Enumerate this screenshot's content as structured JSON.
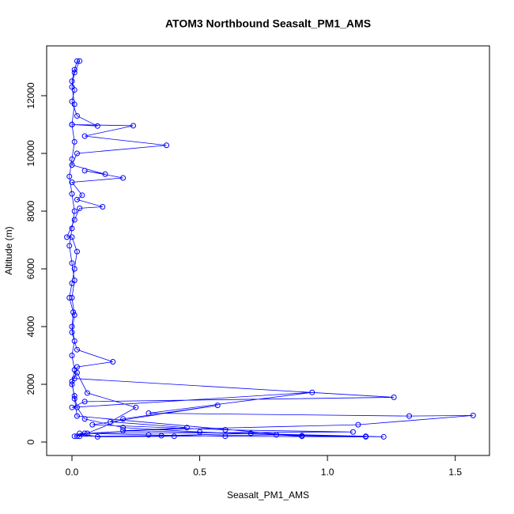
{
  "chart_data": {
    "type": "scatter",
    "lines": true,
    "title": "ATOM3 Northbound Seasalt_PM1_AMS",
    "x_label": "Seasalt_PM1_AMS",
    "y_label": "Altitude (m)",
    "xlim": [
      -0.099,
      1.634
    ],
    "ylim": [
      -466,
      13726
    ],
    "xticks": [
      {
        "value": 0,
        "label": "0.0"
      },
      {
        "value": 0.5,
        "label": "0.5"
      },
      {
        "value": 1,
        "label": "1.0"
      },
      {
        "value": 1.5,
        "label": "1.5"
      }
    ],
    "yticks": [
      0,
      2000,
      4000,
      6000,
      8000,
      10000,
      12000
    ],
    "series": [
      {
        "color": "#0000ff",
        "x": [
          0.01,
          0.05,
          0.3,
          0.6,
          1.15,
          0.9,
          0.5,
          0.2,
          0.05,
          0.02,
          0.01,
          0.0,
          0.01,
          0.0,
          0.01,
          0.0,
          0.005,
          -0.01,
          0.0,
          0.01,
          0.02,
          0.0,
          -0.02,
          0.01,
          0.03,
          0.12,
          0.02,
          0.04,
          0.0,
          0.2,
          0.05,
          0.13,
          0.0,
          0.02,
          0.37,
          0.05,
          0.24,
          0.0,
          0.1,
          0.02,
          0.0,
          0.01,
          0.0,
          0.01,
          0.02,
          0.03,
          0.01,
          0.0,
          0.01,
          0.0,
          0.01,
          0.0,
          -0.01,
          0.0,
          0.01,
          0.0,
          -0.01,
          0.0,
          0.01,
          0.0,
          0.01,
          0.0,
          0.02,
          0.16,
          0.02,
          0.01,
          1.26,
          0.05,
          0.0,
          0.94,
          0.3,
          1.32,
          1.57,
          1.12,
          0.2,
          1.15,
          1.22,
          0.8,
          0.4,
          0.1,
          0.03,
          1.1,
          0.6,
          0.08,
          0.57,
          0.2,
          0.03,
          0.35,
          0.7,
          0.9,
          0.02,
          0.01,
          0.0,
          0.02,
          0.06,
          0.25,
          0.15,
          0.45,
          0.06,
          0.02
        ],
        "y": [
          200,
          300,
          250,
          200,
          180,
          220,
          350,
          500,
          800,
          1200,
          1600,
          2000,
          2500,
          3000,
          3500,
          4000,
          4500,
          5000,
          5500,
          6000,
          6600,
          7100,
          7100,
          7700,
          8100,
          8150,
          8400,
          8550,
          9000,
          9150,
          9400,
          9280,
          9600,
          10000,
          10280,
          10600,
          10960,
          11000,
          10950,
          11300,
          11800,
          12200,
          12500,
          12900,
          13200,
          13200,
          12800,
          12300,
          11700,
          11000,
          10400,
          9800,
          9200,
          8600,
          8000,
          7400,
          6800,
          6200,
          5600,
          5000,
          4400,
          3800,
          3200,
          2780,
          2600,
          2200,
          1550,
          1400,
          1200,
          1720,
          1000,
          900,
          920,
          600,
          400,
          200,
          180,
          250,
          200,
          180,
          300,
          350,
          420,
          600,
          1270,
          800,
          200,
          220,
          300,
          200,
          900,
          1500,
          2100,
          2400,
          1700,
          1200,
          700,
          500,
          300,
          200
        ]
      }
    ]
  }
}
